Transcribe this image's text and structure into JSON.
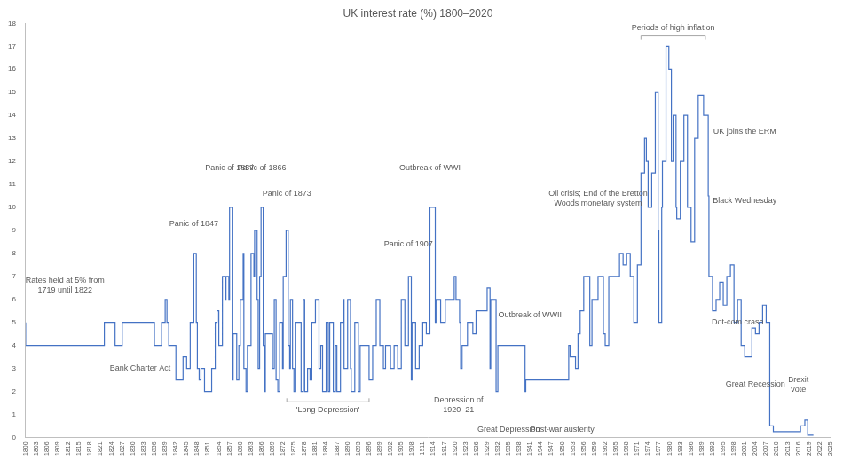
{
  "chart_data": {
    "type": "line",
    "title": "UK interest rate (%) 1800–2020",
    "color": "#4472c4",
    "grid": false,
    "line_style": "stepped",
    "xlim": [
      1800,
      2025
    ],
    "xticks": [
      1800,
      1803,
      1806,
      1809,
      1812,
      1815,
      1818,
      1821,
      1824,
      1827,
      1830,
      1833,
      1836,
      1839,
      1842,
      1845,
      1848,
      1851,
      1854,
      1857,
      1860,
      1863,
      1866,
      1869,
      1872,
      1875,
      1878,
      1881,
      1884,
      1887,
      1890,
      1893,
      1896,
      1899,
      1902,
      1905,
      1908,
      1911,
      1914,
      1917,
      1920,
      1923,
      1926,
      1929,
      1932,
      1935,
      1938,
      1941,
      1944,
      1947,
      1950,
      1953,
      1956,
      1959,
      1962,
      1965,
      1968,
      1971,
      1974,
      1977,
      1980,
      1983,
      1986,
      1989,
      1992,
      1995,
      1998,
      2001,
      2004,
      2007,
      2010,
      2013,
      2016,
      2019,
      2022,
      2025
    ],
    "ylim": [
      0,
      18
    ],
    "yticks": [
      0,
      1,
      2,
      3,
      4,
      5,
      6,
      7,
      8,
      9,
      10,
      11,
      12,
      13,
      14,
      15,
      16,
      17,
      18
    ],
    "x": [
      1800,
      1822,
      1825,
      1827,
      1836,
      1838,
      1839,
      1839.5,
      1840,
      1842,
      1844,
      1845,
      1846,
      1847,
      1847.7,
      1848,
      1848.5,
      1849,
      1850,
      1852,
      1853,
      1853.5,
      1854,
      1855,
      1855.8,
      1856,
      1856.8,
      1857,
      1857.9,
      1858,
      1859,
      1859.6,
      1860,
      1860.8,
      1861,
      1861.6,
      1862,
      1863,
      1863.8,
      1864,
      1864.7,
      1865,
      1865.4,
      1865.8,
      1866.4,
      1866.7,
      1867,
      1869,
      1869.5,
      1870,
      1870.5,
      1871,
      1871.8,
      1872,
      1872.8,
      1873.4,
      1873.8,
      1874,
      1874.6,
      1875,
      1875.5,
      1877,
      1877.6,
      1878,
      1878.8,
      1879.5,
      1880,
      1881,
      1882,
      1882.5,
      1883,
      1884,
      1884.6,
      1885,
      1886,
      1886.6,
      1887,
      1888,
      1888.8,
      1889,
      1890,
      1890.8,
      1891,
      1892,
      1893,
      1893.5,
      1896,
      1897,
      1898,
      1899,
      1900,
      1900.6,
      1902,
      1903,
      1904,
      1905,
      1906,
      1907,
      1907.8,
      1908,
      1909,
      1910,
      1911,
      1912,
      1913,
      1914.5,
      1914.7,
      1916,
      1917.3,
      1919.8,
      1920.3,
      1921.3,
      1921.6,
      1922,
      1923.5,
      1925,
      1925.9,
      1929,
      1929.8,
      1930,
      1931.5,
      1932,
      1939.6,
      1939.8,
      1951.8,
      1952.2,
      1953.7,
      1954.4,
      1955,
      1956,
      1957.7,
      1958.3,
      1960,
      1961.5,
      1962,
      1963,
      1964,
      1966,
      1967,
      1968,
      1969,
      1970,
      1971,
      1972,
      1973,
      1973.5,
      1974,
      1975,
      1976,
      1976.8,
      1977,
      1977.8,
      1978,
      1979,
      1979.8,
      1980.5,
      1981,
      1981.8,
      1982,
      1983,
      1984,
      1985,
      1986,
      1987,
      1988,
      1989.5,
      1990.8,
      1991,
      1992,
      1993,
      1994,
      1995,
      1996,
      1997,
      1998,
      1999,
      2000,
      2001,
      2003,
      2004,
      2005,
      2006,
      2007,
      2008,
      2009,
      2016.6,
      2017.8,
      2018.6,
      2020.2
    ],
    "values": [
      5,
      4,
      5,
      4,
      5,
      4,
      5,
      6,
      5,
      4,
      2.5,
      3.5,
      3,
      5,
      8,
      5,
      3,
      2.5,
      3,
      2,
      3,
      5,
      5.5,
      4,
      7,
      6,
      7,
      6,
      10,
      2.5,
      4.5,
      2.5,
      4,
      6,
      8,
      3,
      2,
      4,
      8,
      7,
      9,
      6,
      3,
      7,
      10,
      4,
      2,
      4.5,
      3,
      6,
      2.5,
      2,
      5,
      3,
      7,
      9,
      4,
      3,
      6,
      3,
      2,
      5,
      2,
      6,
      2,
      3,
      2.5,
      5,
      6,
      3,
      4,
      2,
      5,
      2,
      5,
      2,
      4,
      2,
      5,
      6,
      3,
      6,
      3,
      2,
      5,
      2,
      4,
      2.5,
      4,
      6,
      4,
      3,
      4,
      3,
      4,
      3,
      6,
      4,
      7,
      2.5,
      5,
      3,
      4,
      5,
      4.5,
      10,
      5,
      6,
      5,
      6,
      7,
      6,
      5,
      3,
      4,
      5,
      4.5,
      5.5,
      6.5,
      3,
      6,
      2,
      4,
      2,
      2.5,
      4,
      3.5,
      3,
      4.5,
      5.5,
      7,
      4,
      6,
      7,
      4.5,
      4,
      7,
      7,
      8,
      7.5,
      8,
      7,
      5,
      7.5,
      11.5,
      13,
      12,
      10,
      11.5,
      15,
      9,
      5,
      10,
      12,
      17,
      16,
      12,
      14,
      10,
      9.5,
      12,
      14,
      10,
      8.5,
      13,
      14.88,
      14,
      10.5,
      7,
      5.5,
      6,
      6.75,
      5.75,
      7,
      7.5,
      5,
      6,
      4,
      3.5,
      4.75,
      4.5,
      5,
      5.75,
      5,
      0.5,
      0.25,
      0.5,
      0.75,
      0.1
    ],
    "annotations": [
      {
        "text": "Rates held at 5% from\n1719 until 1822",
        "x": 1811,
        "y": 6.6
      },
      {
        "text": "Bank Charter Act",
        "x": 1832,
        "y": 3.0
      },
      {
        "text": "Panic of 1847",
        "x": 1847,
        "y": 9.3
      },
      {
        "text": "Panic of 1857",
        "x": 1857,
        "y": 11.7
      },
      {
        "text": "Panic of 1866",
        "x": 1866,
        "y": 11.7
      },
      {
        "text": "Panic of 1873",
        "x": 1873,
        "y": 10.6
      },
      {
        "text": "'Long Depression'",
        "x": 1873,
        "x2": 1896,
        "y": 1.2
      },
      {
        "text": "Panic of 1907",
        "x": 1907,
        "y": 8.4
      },
      {
        "text": "Outbreak of WWI",
        "x": 1913,
        "y": 11.7
      },
      {
        "text": "Depression of\n1920–21",
        "x": 1921,
        "y": 1.4
      },
      {
        "text": "Great Depression",
        "x": 1935,
        "y": 0.35
      },
      {
        "text": "Outbreak of WWII",
        "x": 1941,
        "y": 5.3
      },
      {
        "text": "Post-war austerity",
        "x": 1950,
        "y": 0.35
      },
      {
        "text": "Oil crisis; End of the Bretton\nWoods monetary system",
        "x": 1960,
        "y": 10.4
      },
      {
        "text": "Periods of high inflation",
        "x": 1972,
        "x2": 1990,
        "y": 17.8
      },
      {
        "text": "UK joins the ERM",
        "x": 2001,
        "y": 13.3
      },
      {
        "text": "Black Wednesday",
        "x": 2001,
        "y": 10.3
      },
      {
        "text": "Dot-com crash",
        "x": 1999,
        "y": 5.0
      },
      {
        "text": "Great Recession",
        "x": 2004,
        "y": 2.3
      },
      {
        "text": "Brexit\nvote",
        "x": 2016,
        "y": 2.3
      }
    ]
  }
}
